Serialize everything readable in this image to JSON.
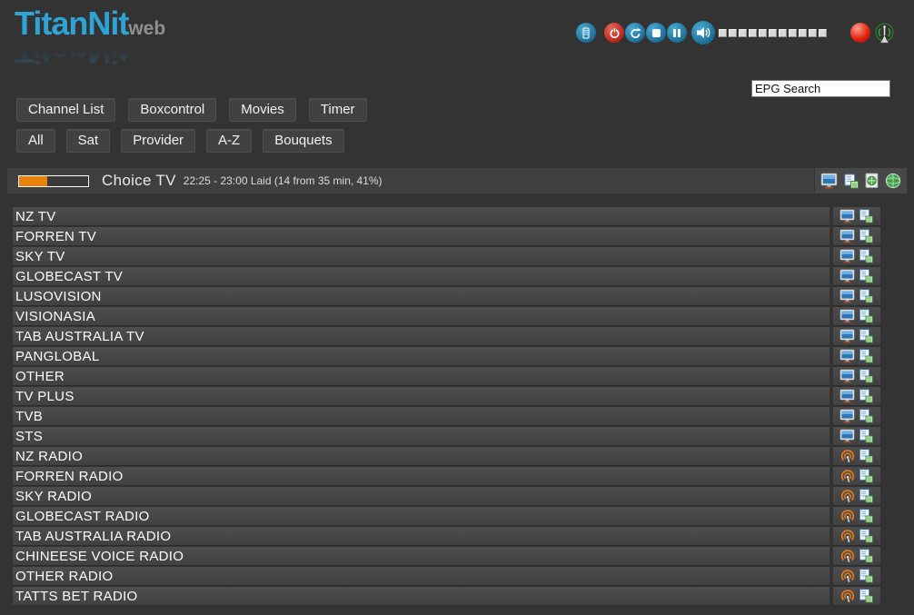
{
  "logo": {
    "brand": "TitanNit",
    "sub": "web"
  },
  "toolbar": {
    "icons": [
      {
        "name": "remote-control"
      },
      {
        "name": "power"
      },
      {
        "name": "refresh"
      },
      {
        "name": "stop"
      },
      {
        "name": "pause"
      },
      {
        "name": "volume-mute"
      }
    ],
    "volume_segments": 11,
    "record_indicator": "record",
    "signal_indicator": "signal"
  },
  "search": {
    "value": "EPG Search"
  },
  "nav": {
    "main": [
      "Channel List",
      "Boxcontrol",
      "Movies",
      "Timer"
    ],
    "filters": [
      "All",
      "Sat",
      "Provider",
      "A-Z",
      "Bouquets"
    ]
  },
  "now_playing": {
    "channel": "Choice TV",
    "epg_info": "22:25 - 23:00 Laid (14 from 35 min, 41%)",
    "progress_percent": 41
  },
  "colors": {
    "background": "#333333",
    "accent_orange": "#e8820c",
    "logo_blue": "#2fa3d3",
    "button_blue": "#1d6f97",
    "button_red": "#b42619"
  },
  "channels": [
    {
      "name": "NZ TV",
      "type": "tv"
    },
    {
      "name": "FORREN TV",
      "type": "tv"
    },
    {
      "name": "SKY TV",
      "type": "tv"
    },
    {
      "name": "GLOBECAST TV",
      "type": "tv"
    },
    {
      "name": "LUSOVISION",
      "type": "tv"
    },
    {
      "name": "VISIONASIA",
      "type": "tv"
    },
    {
      "name": "TAB AUSTRALIA TV",
      "type": "tv"
    },
    {
      "name": "PANGLOBAL",
      "type": "tv"
    },
    {
      "name": "OTHER",
      "type": "tv"
    },
    {
      "name": "TV PLUS",
      "type": "tv"
    },
    {
      "name": "TVB",
      "type": "tv"
    },
    {
      "name": "STS",
      "type": "tv"
    },
    {
      "name": "NZ RADIO",
      "type": "radio"
    },
    {
      "name": "FORREN RADIO",
      "type": "radio"
    },
    {
      "name": "SKY RADIO",
      "type": "radio"
    },
    {
      "name": "GLOBECAST RADIO",
      "type": "radio"
    },
    {
      "name": "TAB AUSTRALIA RADIO",
      "type": "radio"
    },
    {
      "name": "CHINEESE VOICE RADIO",
      "type": "radio"
    },
    {
      "name": "OTHER RADIO",
      "type": "radio"
    },
    {
      "name": "TATTS BET RADIO",
      "type": "radio"
    }
  ]
}
